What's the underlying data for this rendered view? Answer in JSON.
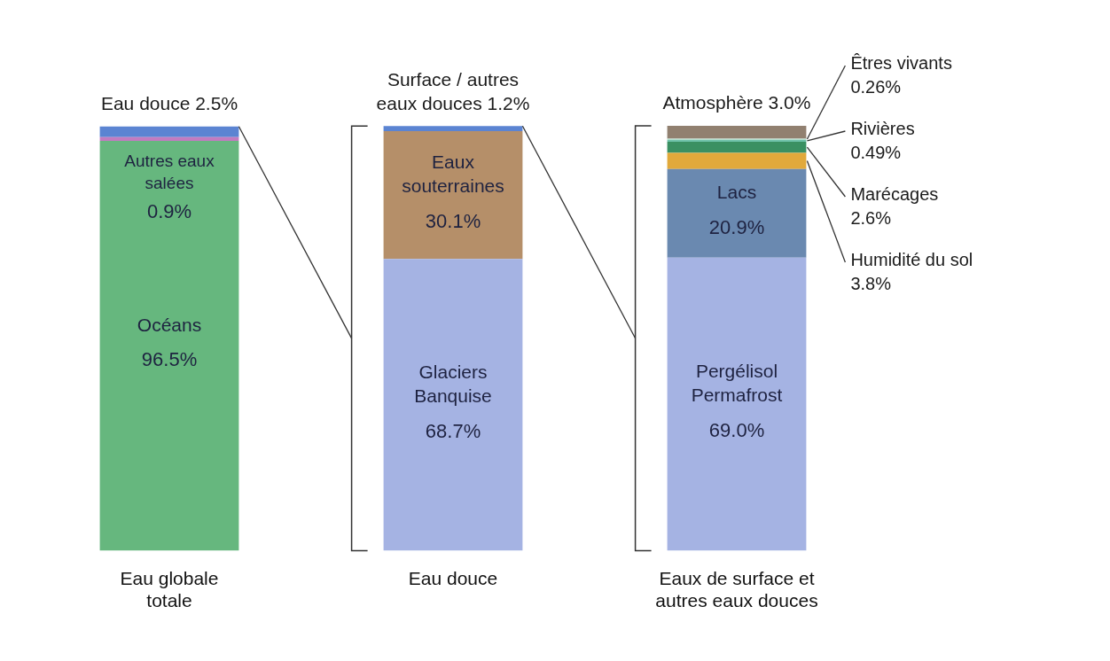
{
  "chart_data": {
    "type": "bar",
    "stacked": true,
    "tick_labels": "x",
    "categories": [
      "Eau globale totale",
      "Eau douce",
      "Eaux de surface et autres eaux douces"
    ],
    "series": [
      {
        "name": "Océans",
        "color": "#66b77e",
        "values": [
          96.5,
          null,
          null
        ],
        "value_labels": [
          "96.5%",
          null,
          null
        ]
      },
      {
        "name": "Autres eaux salées",
        "color": "#c27bc0",
        "values": [
          0.9,
          null,
          null
        ],
        "value_labels": [
          "0.9%",
          null,
          null
        ]
      },
      {
        "name": "Eau douce",
        "color": "#5b84d2",
        "values": [
          2.5,
          null,
          null
        ],
        "value_labels": [
          "2.5%",
          null,
          null
        ]
      },
      {
        "name": "Glaciers Banquise",
        "color": "#a5b3e3",
        "values": [
          null,
          68.7,
          null
        ],
        "value_labels": [
          null,
          "68.7%",
          null
        ]
      },
      {
        "name": "Eaux souterraines",
        "color": "#b58f69",
        "values": [
          null,
          30.1,
          null
        ],
        "value_labels": [
          null,
          "30.1%",
          null
        ]
      },
      {
        "name": "Surface / autres eaux douces",
        "color": "#5b84d2",
        "values": [
          null,
          1.2,
          null
        ],
        "value_labels": [
          null,
          "1.2%",
          null
        ]
      },
      {
        "name": "Pergélisol Permafrost",
        "color": "#a5b3e3",
        "values": [
          null,
          null,
          69.0
        ],
        "value_labels": [
          null,
          null,
          "69.0%"
        ]
      },
      {
        "name": "Lacs",
        "color": "#6a89b0",
        "values": [
          null,
          null,
          20.9
        ],
        "value_labels": [
          null,
          null,
          "20.9%"
        ]
      },
      {
        "name": "Humidité du sol",
        "color": "#e1a93b",
        "values": [
          null,
          null,
          3.8
        ],
        "value_labels": [
          null,
          null,
          "3.8%"
        ]
      },
      {
        "name": "Marécages",
        "color": "#3a9062",
        "values": [
          null,
          null,
          2.6
        ],
        "value_labels": [
          null,
          null,
          "2.6%"
        ]
      },
      {
        "name": "Rivières",
        "color": "#6fc2a9",
        "values": [
          null,
          null,
          0.49
        ],
        "value_labels": [
          null,
          null,
          "0.49%"
        ]
      },
      {
        "name": "Êtres vivants",
        "color": "#b9e0d0",
        "values": [
          null,
          null,
          0.26
        ],
        "value_labels": [
          null,
          null,
          "0.26%"
        ]
      },
      {
        "name": "Atmosphère",
        "color": "#918070",
        "values": [
          null,
          null,
          3.0
        ],
        "value_labels": [
          null,
          null,
          "3.0%"
        ]
      }
    ]
  }
}
